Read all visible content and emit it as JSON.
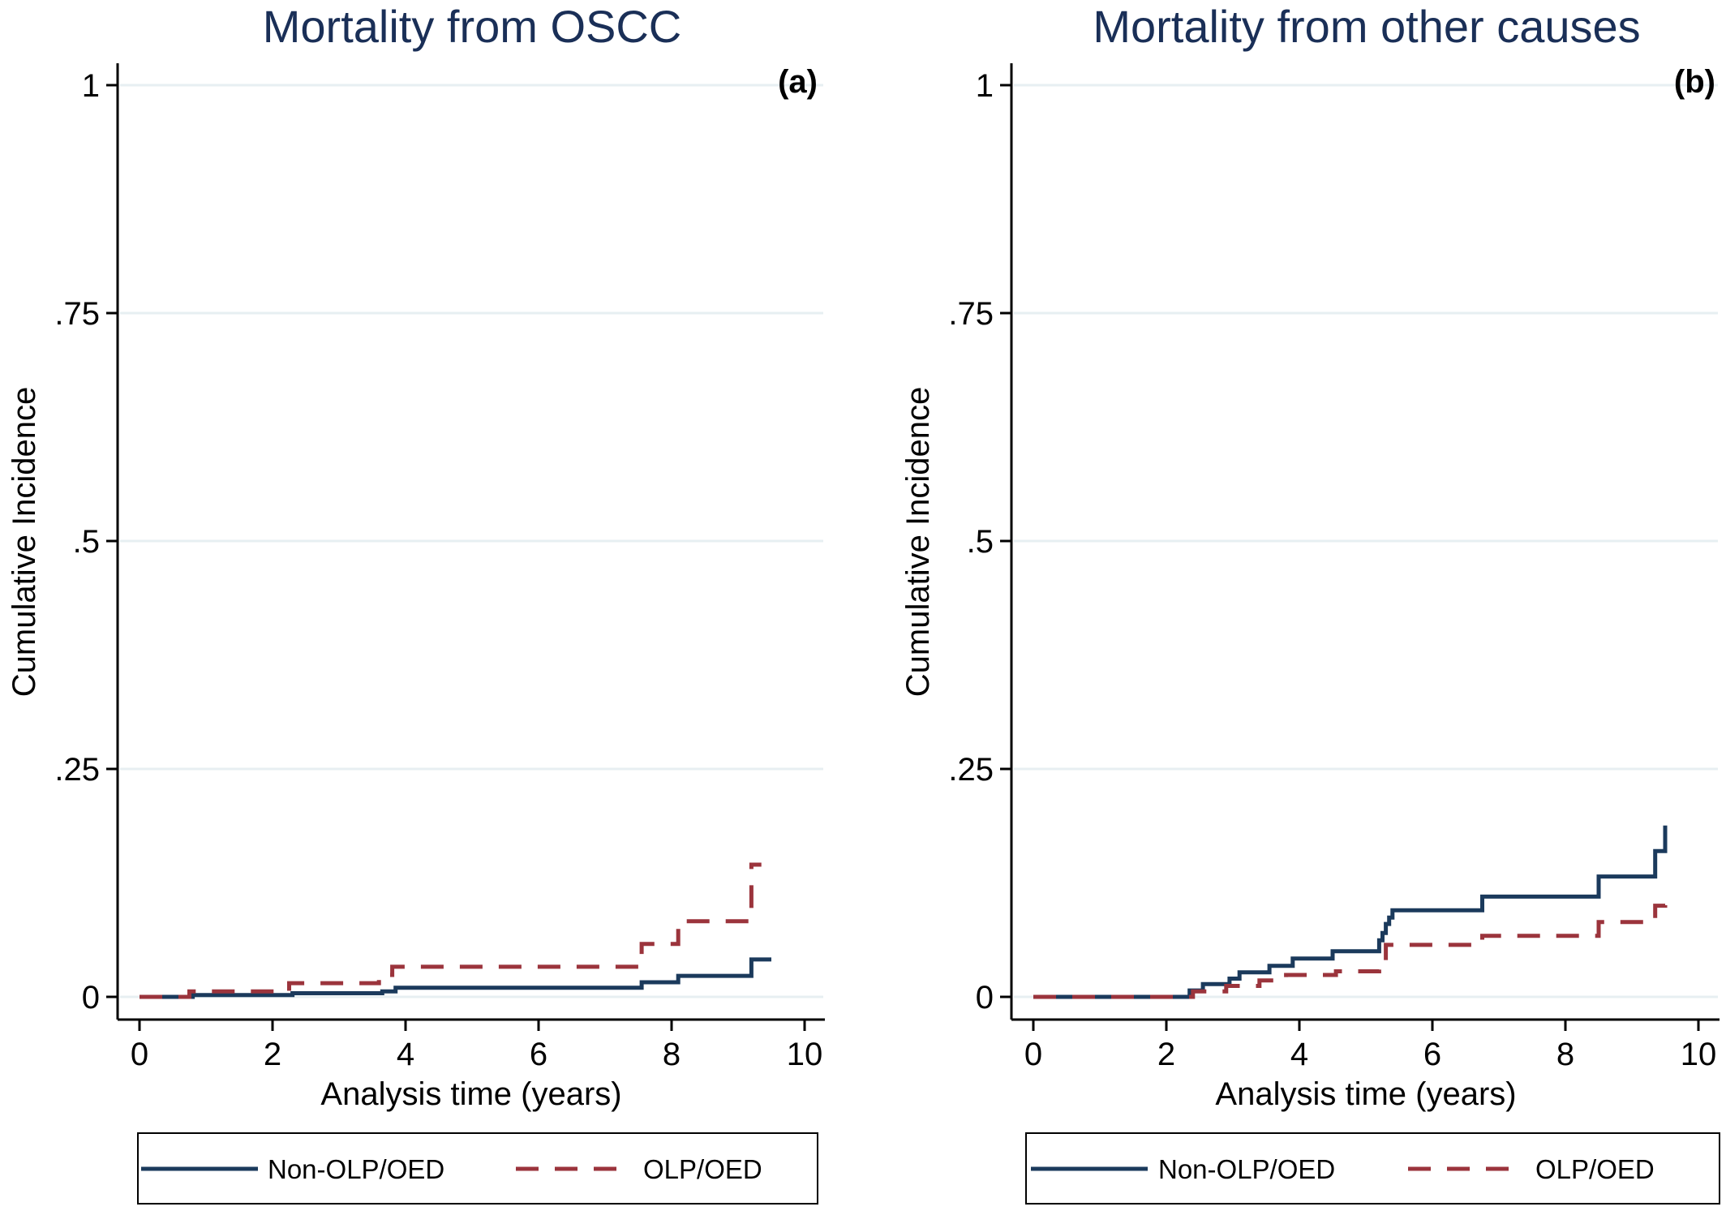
{
  "colors": {
    "non_olp": "#1b3a5c",
    "olp": "#9b343c",
    "grid": "#e7eff2",
    "title": "#1a2f57"
  },
  "chart_data": [
    {
      "type": "line",
      "title": "Mortality from OSCC",
      "panel_label": "(a)",
      "xlabel": "Analysis time (years)",
      "ylabel": "Cumulative Incidence",
      "xlim": [
        0,
        10
      ],
      "ylim": [
        0,
        1
      ],
      "xticks": [
        "0",
        "2",
        "4",
        "6",
        "8",
        "10"
      ],
      "yticks": [
        "0",
        ".25",
        ".5",
        ".75",
        "1"
      ],
      "ytick_values": [
        0,
        0.25,
        0.5,
        0.75,
        1
      ],
      "xtick_values": [
        0,
        2,
        4,
        6,
        8,
        10
      ],
      "grid": true,
      "legend_position": "bottom",
      "series": [
        {
          "name": "Non-OLP/OED",
          "key": "non_olp",
          "style": "solid",
          "points": [
            [
              0,
              0
            ],
            [
              0.8,
              0
            ],
            [
              0.8,
              0.002
            ],
            [
              2.3,
              0.002
            ],
            [
              2.3,
              0.004
            ],
            [
              3.65,
              0.004
            ],
            [
              3.65,
              0.006
            ],
            [
              3.85,
              0.006
            ],
            [
              3.85,
              0.01
            ],
            [
              7.55,
              0.01
            ],
            [
              7.55,
              0.016
            ],
            [
              8.1,
              0.016
            ],
            [
              8.1,
              0.023
            ],
            [
              9.2,
              0.023
            ],
            [
              9.2,
              0.041
            ],
            [
              9.5,
              0.041
            ]
          ]
        },
        {
          "name": "OLP/OED",
          "key": "olp",
          "style": "dashed",
          "points": [
            [
              0,
              0
            ],
            [
              0.75,
              0
            ],
            [
              0.75,
              0.006
            ],
            [
              2.25,
              0.006
            ],
            [
              2.25,
              0.015
            ],
            [
              3.6,
              0.015
            ],
            [
              3.6,
              0.024
            ],
            [
              3.8,
              0.024
            ],
            [
              3.8,
              0.033
            ],
            [
              7.55,
              0.033
            ],
            [
              7.55,
              0.058
            ],
            [
              8.1,
              0.058
            ],
            [
              8.1,
              0.083
            ],
            [
              9.2,
              0.083
            ],
            [
              9.2,
              0.145
            ],
            [
              9.35,
              0.145
            ]
          ]
        }
      ]
    },
    {
      "type": "line",
      "title": "Mortality from other causes",
      "panel_label": "(b)",
      "xlabel": "Analysis time (years)",
      "ylabel": "Cumulative Incidence",
      "xlim": [
        0,
        10
      ],
      "ylim": [
        0,
        1
      ],
      "xticks": [
        "0",
        "2",
        "4",
        "6",
        "8",
        "10"
      ],
      "yticks": [
        "0",
        ".25",
        ".5",
        ".75",
        "1"
      ],
      "ytick_values": [
        0,
        0.25,
        0.5,
        0.75,
        1
      ],
      "xtick_values": [
        0,
        2,
        4,
        6,
        8,
        10
      ],
      "grid": true,
      "legend_position": "bottom",
      "series": [
        {
          "name": "Non-OLP/OED",
          "key": "non_olp",
          "style": "solid",
          "points": [
            [
              0,
              0
            ],
            [
              2.35,
              0
            ],
            [
              2.35,
              0.007
            ],
            [
              2.55,
              0.007
            ],
            [
              2.55,
              0.014
            ],
            [
              2.95,
              0.014
            ],
            [
              2.95,
              0.02
            ],
            [
              3.1,
              0.02
            ],
            [
              3.1,
              0.027
            ],
            [
              3.55,
              0.027
            ],
            [
              3.55,
              0.034
            ],
            [
              3.9,
              0.034
            ],
            [
              3.9,
              0.042
            ],
            [
              4.5,
              0.042
            ],
            [
              4.5,
              0.05
            ],
            [
              5.2,
              0.05
            ],
            [
              5.2,
              0.062
            ],
            [
              5.25,
              0.062
            ],
            [
              5.25,
              0.07
            ],
            [
              5.3,
              0.07
            ],
            [
              5.3,
              0.08
            ],
            [
              5.35,
              0.08
            ],
            [
              5.35,
              0.087
            ],
            [
              5.4,
              0.087
            ],
            [
              5.4,
              0.095
            ],
            [
              6.75,
              0.095
            ],
            [
              6.75,
              0.11
            ],
            [
              8.5,
              0.11
            ],
            [
              8.5,
              0.132
            ],
            [
              9.35,
              0.132
            ],
            [
              9.35,
              0.16
            ],
            [
              9.5,
              0.16
            ],
            [
              9.5,
              0.188
            ]
          ]
        },
        {
          "name": "OLP/OED",
          "key": "olp",
          "style": "dashed",
          "points": [
            [
              0,
              0
            ],
            [
              2.4,
              0
            ],
            [
              2.4,
              0.006
            ],
            [
              2.9,
              0.006
            ],
            [
              2.9,
              0.012
            ],
            [
              3.4,
              0.012
            ],
            [
              3.4,
              0.018
            ],
            [
              3.8,
              0.018
            ],
            [
              3.8,
              0.024
            ],
            [
              4.55,
              0.024
            ],
            [
              4.55,
              0.028
            ],
            [
              5.2,
              0.028
            ],
            [
              5.2,
              0.034
            ],
            [
              5.3,
              0.034
            ],
            [
              5.3,
              0.057
            ],
            [
              6.75,
              0.057
            ],
            [
              6.75,
              0.067
            ],
            [
              8.5,
              0.067
            ],
            [
              8.5,
              0.082
            ],
            [
              9.35,
              0.082
            ],
            [
              9.35,
              0.1
            ],
            [
              9.5,
              0.1
            ],
            [
              9.5,
              0.112
            ]
          ]
        }
      ]
    }
  ]
}
